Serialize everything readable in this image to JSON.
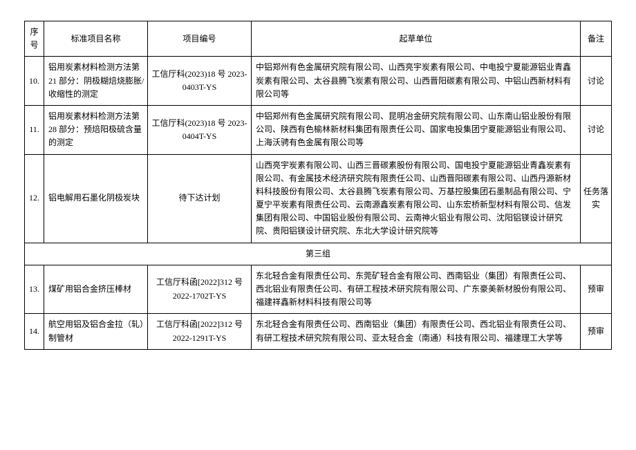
{
  "columns": {
    "idx": "序号",
    "name": "标准项目名称",
    "code": "项目编号",
    "org": "起草单位",
    "remark": "备注"
  },
  "rows": [
    {
      "idx": "10.",
      "name": "铝用炭素材料检测方法第 21 部分：阴极糊焙烧膨胀/收缩性的测定",
      "code": "工信厅科(2023)18 号 2023-0403T-YS",
      "org": "中铝郑州有色金属研究院有限公司、山西亮宇炭素有限公司、中电投宁夏能源铝业青鑫炭素有限公司、太谷县腾飞炭素有限公司、山西晋阳碳素有限公司、中铝山西新材料有限公司等",
      "remark": "讨论"
    },
    {
      "idx": "11.",
      "name": "铝用炭素材料检测方法第 28 部分：预焙阳极硫含量的测定",
      "code": "工信厅科(2023)18 号 2023-0404T-YS",
      "org": "中铝郑州有色金属研究院有限公司、昆明冶金研究院有限公司、山东南山铝业股份有限公司、陕西有色榆林新材料集团有限责任公司、国家电投集团宁夏能源铝业有限公司、上海沃骋有色金属有限公司等",
      "remark": "讨论"
    },
    {
      "idx": "12.",
      "name": "铝电解用石墨化阴极炭块",
      "code": "待下达计划",
      "org": "山西亮宇炭素有限公司、山西三晋碳素股份有限公司、国电投宁夏能源铝业青鑫炭素有限公司、有金属技术经济研究院有限责任公司、山西晋阳碳素有限公司、山西丹源新材料科技股份有限公司、太谷县腾飞炭素有限公司、万基控股集团石墨制品有限公司、宁夏宁平炭素有限责任公司、云南源鑫炭素有限公司、山东宏桥新型材料有限公司、信发集团有限公司、中国铝业股份有限公司、云南神火铝业有限公司、沈阳铝镁设计研究院、贵阳铝镁设计研究院、东北大学设计研究院等",
      "remark": "任务落实"
    }
  ],
  "group3_label": "第三组",
  "rows3": [
    {
      "idx": "13.",
      "name": "煤矿用铝合金挤压棒材",
      "code": "工信厅科函[2022]312 号 2022-1702T-YS",
      "org": "东北轻合金有限责任公司、东莞矿轻合金有限公司、西南铝业（集团）有限责任公司、西北铝业有限责任公司、有研工程技术研究院有限公司、广东豪美新材股份有限公司、福建祥鑫新材料科技有限公司等",
      "remark": "预审"
    },
    {
      "idx": "14.",
      "name": "航空用铝及铝合金拉（轧）制管材",
      "code": "工信厅科函[2022]312 号 2022-1291T-YS",
      "org": "东北轻合金有限责任公司、西南铝业（集团）有限责任公司、西北铝业有限责任公司、有研工程技术研究院有限公司、亚太轻合金（南通）科技有限公司、福建理工大学等",
      "remark": "预审"
    }
  ]
}
